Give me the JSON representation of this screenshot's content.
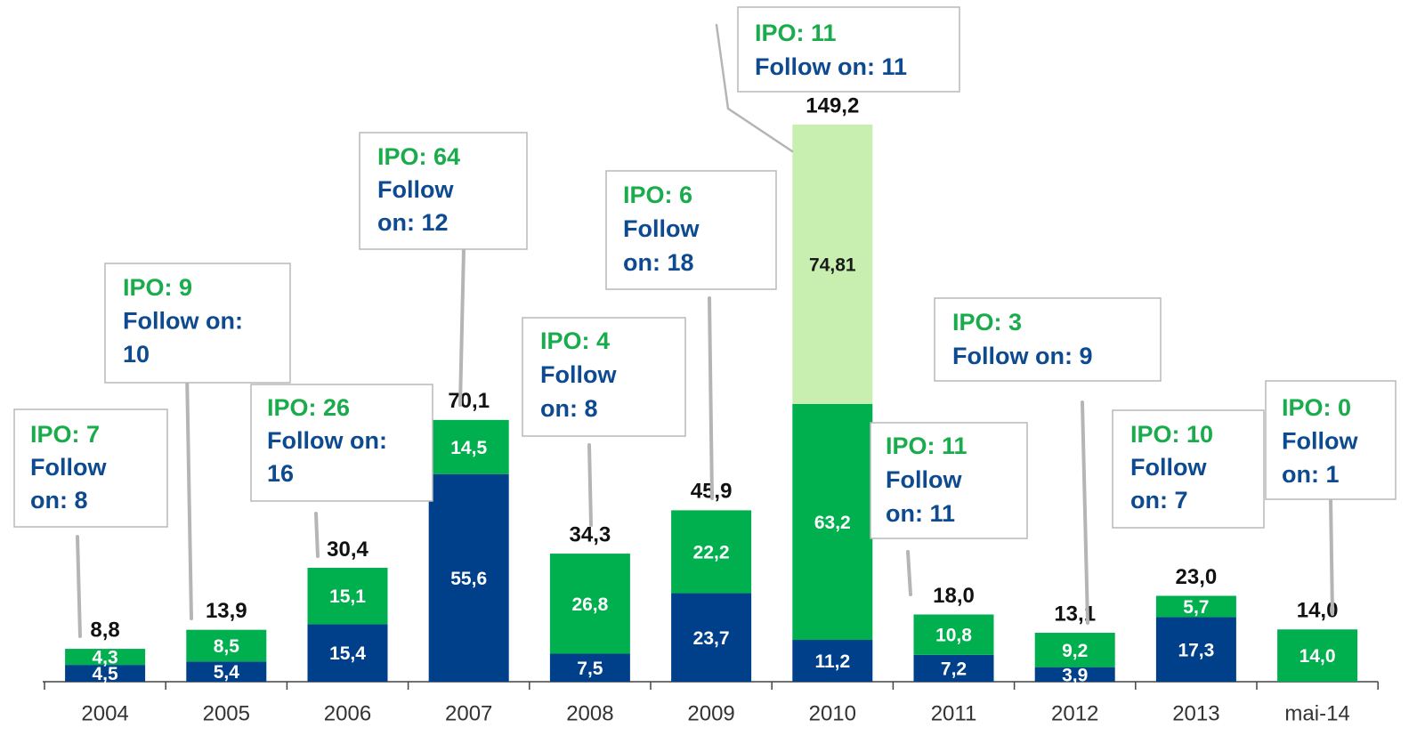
{
  "chart_data": {
    "type": "bar",
    "stacked": true,
    "categories": [
      "2004",
      "2005",
      "2006",
      "2007",
      "2008",
      "2009",
      "2010",
      "2011",
      "2012",
      "2013",
      "mai-14"
    ],
    "ylim": [
      0,
      150
    ],
    "series": [
      {
        "color": "#003f8a",
        "label_color": "#ffffff",
        "values": [
          4.5,
          5.4,
          15.4,
          55.6,
          7.5,
          23.7,
          11.2,
          7.2,
          3.9,
          17.3,
          null
        ],
        "value_labels": [
          "4,5",
          "5,4",
          "15,4",
          "55,6",
          "7,5",
          "23,7",
          "11,2",
          "7,2",
          "3,9",
          "17,3",
          null
        ]
      },
      {
        "color": "#00b04f",
        "label_color": "#ffffff",
        "values": [
          4.3,
          8.5,
          15.1,
          14.5,
          26.8,
          22.2,
          63.2,
          10.8,
          9.2,
          5.7,
          14.0
        ],
        "value_labels": [
          "4,3",
          "8,5",
          "15,1",
          "14,5",
          "26,8",
          "22,2",
          "63,2",
          "10,8",
          "9,2",
          "5,7",
          "14,0"
        ]
      },
      {
        "color": "#c9efb0",
        "label_color": "#1a1a1a",
        "values": [
          null,
          null,
          null,
          null,
          null,
          null,
          74.81,
          null,
          null,
          null,
          null
        ],
        "value_labels": [
          null,
          null,
          null,
          null,
          null,
          null,
          "74,81",
          null,
          null,
          null,
          null
        ]
      }
    ],
    "totals": {
      "values": [
        8.8,
        13.9,
        30.4,
        70.1,
        34.3,
        45.9,
        149.2,
        18.0,
        13.1,
        23.0,
        14.0
      ],
      "value_labels": [
        "8,8",
        "13,9",
        "30,4",
        "70,1",
        "34,3",
        "45,9",
        "149,2",
        "18,0",
        "13,1",
        "23,0",
        "14,0"
      ]
    },
    "annotations": [
      {
        "lines": [
          "IPO:  7",
          "Follow",
          "on: 8"
        ]
      },
      {
        "lines": [
          "IPO:  9",
          "Follow on:",
          "10"
        ]
      },
      {
        "lines": [
          "IPO: 26",
          "Follow on:",
          "16"
        ]
      },
      {
        "lines": [
          "IPO:  64",
          "Follow",
          "on: 12"
        ]
      },
      {
        "lines": [
          "IPO:  4",
          "Follow",
          "on: 8"
        ]
      },
      {
        "lines": [
          "IPO:  6",
          "Follow",
          "on: 18"
        ]
      },
      {
        "lines": [
          "IPO:  11",
          "Follow on: 11"
        ]
      },
      {
        "lines": [
          "IPO:  11",
          "Follow",
          "on: 11"
        ]
      },
      {
        "lines": [
          "IPO:  3",
          "Follow on: 9"
        ]
      },
      {
        "lines": [
          "IPO:  10",
          "Follow",
          "on: 7"
        ]
      },
      {
        "lines": [
          "IPO:  0",
          "Follow",
          "on: 1"
        ]
      }
    ],
    "annotation_colors": [
      "#1aac4c",
      "#0d4a8f"
    ]
  }
}
